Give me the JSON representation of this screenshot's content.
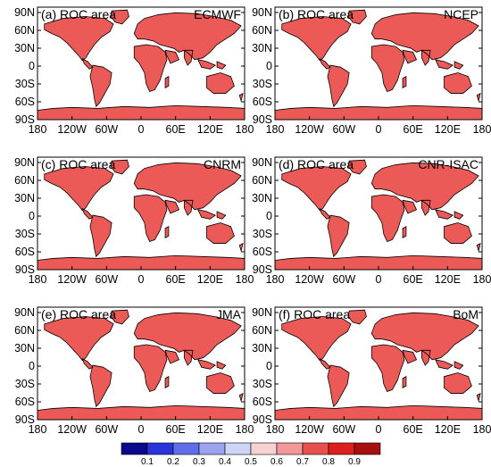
{
  "figure": {
    "panels": [
      {
        "label": "(a) ROC area",
        "model": "ECMWF"
      },
      {
        "label": "(b) ROC area",
        "model": "NCEP"
      },
      {
        "label": "(c) ROC area",
        "model": "CNRM"
      },
      {
        "label": "(d) ROC area",
        "model": "CNR-ISAC"
      },
      {
        "label": "(e) ROC area",
        "model": "JMA"
      },
      {
        "label": "(f) ROC area",
        "model": "BoM"
      }
    ],
    "lat_labels": [
      "90N",
      "60N",
      "30N",
      "0",
      "30S",
      "60S",
      "90S"
    ],
    "lon_labels": [
      "180",
      "120W",
      "60W",
      "0",
      "60E",
      "120E",
      "180"
    ]
  },
  "colorbar": {
    "labels": [
      "0.1",
      "0.2",
      "0.3",
      "0.4",
      "0.5",
      "0.6",
      "0.7",
      "0.8",
      "0.9"
    ],
    "colors": [
      "#0a0a8c",
      "#2a34d8",
      "#5f6ee8",
      "#9aa4f0",
      "#cdd4f8",
      "#f8d2d2",
      "#f2989a",
      "#e8504e",
      "#dc1e1c",
      "#a81010"
    ]
  },
  "map_colors": {
    "land_typical": "#ec5a58",
    "land_light": "#f4a0a0",
    "land_pale": "#f8d2d2",
    "land_blueish": "#cdd4f8",
    "ocean": "#ffffff",
    "coastline": "#000000"
  }
}
